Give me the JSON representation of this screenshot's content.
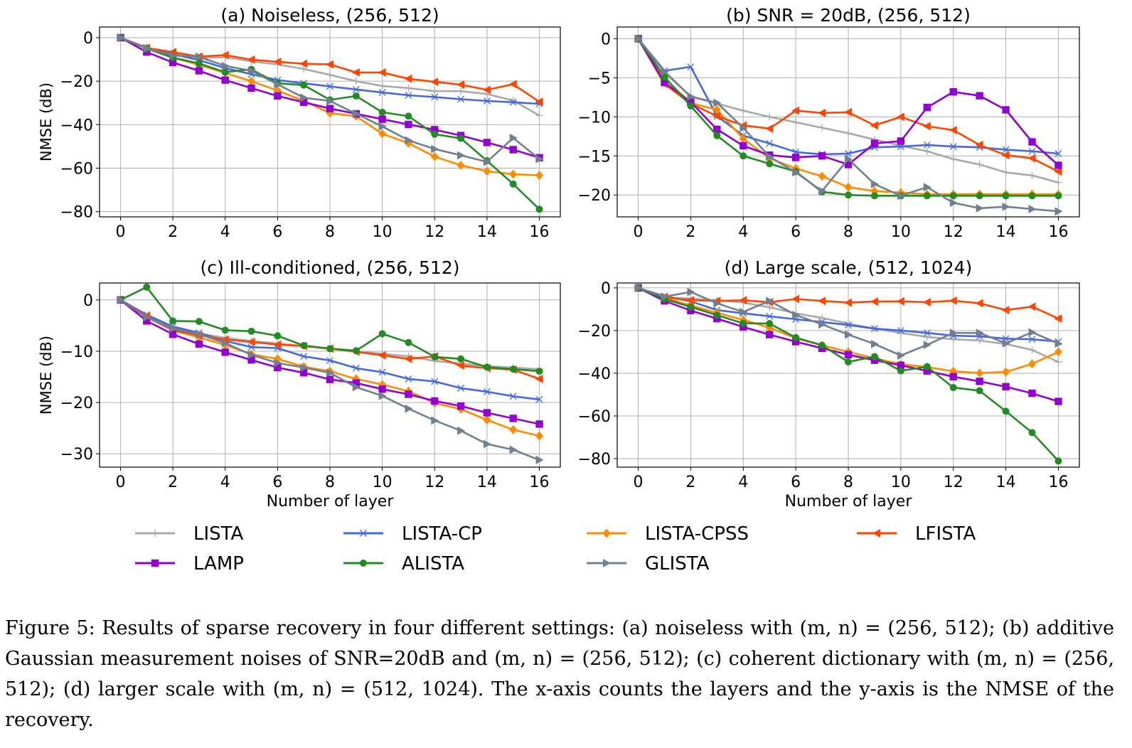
{
  "chart_data": [
    {
      "type": "line",
      "title": "(a) Noiseless, (256, 512)",
      "xlabel": "",
      "ylabel": "NMSE (dB)",
      "xlim": [
        -0.8,
        16.8
      ],
      "ylim": [
        -82.4,
        4.9
      ],
      "xticks": [
        0,
        2,
        4,
        6,
        8,
        10,
        12,
        14,
        16
      ],
      "yticks": [
        0,
        -20,
        -40,
        -60,
        -80
      ],
      "ytick_labels": [
        "0",
        "−20",
        "−40",
        "−60",
        "−80"
      ],
      "grid": true,
      "x": [
        0,
        1,
        2,
        3,
        4,
        5,
        6,
        7,
        8,
        9,
        10,
        11,
        12,
        13,
        14,
        15,
        16
      ],
      "series": [
        {
          "name": "LISTA",
          "values": [
            0,
            -4.6,
            -7.3,
            -9.3,
            -9.0,
            -10.9,
            -12.3,
            -14.4,
            -17.1,
            -20.0,
            -22.2,
            -23.2,
            -24.6,
            -24.6,
            -25.9,
            -28.9,
            -35.8
          ]
        },
        {
          "name": "LISTA-CP",
          "values": [
            0,
            -4.6,
            -7.6,
            -10.3,
            -14.0,
            -16.8,
            -19.5,
            -21.0,
            -22.4,
            -23.8,
            -25.2,
            -26.5,
            -27.3,
            -28.3,
            -29.1,
            -29.7,
            -30.4
          ]
        },
        {
          "name": "LISTA-CPSS",
          "values": [
            0,
            -4.9,
            -9.2,
            -12.5,
            -16.2,
            -20.0,
            -24.3,
            -29.1,
            -34.7,
            -36.1,
            -44.2,
            -48.5,
            -54.7,
            -58.7,
            -61.4,
            -62.8,
            -63.3
          ]
        },
        {
          "name": "LFISTA",
          "values": [
            0,
            -4.7,
            -6.6,
            -8.7,
            -8.0,
            -10.1,
            -11.1,
            -12.0,
            -12.3,
            -16.0,
            -16.0,
            -18.9,
            -20.3,
            -21.6,
            -24.0,
            -21.4,
            -29.5
          ]
        },
        {
          "name": "LAMP",
          "values": [
            0,
            -6.6,
            -11.4,
            -15.2,
            -19.5,
            -23.2,
            -26.8,
            -29.7,
            -32.6,
            -35.0,
            -37.5,
            -39.9,
            -42.3,
            -45.0,
            -48.2,
            -51.5,
            -55.2
          ]
        },
        {
          "name": "ALISTA",
          "values": [
            0,
            -5.0,
            -9.2,
            -11.8,
            -15.9,
            -14.6,
            -21.0,
            -21.8,
            -28.6,
            -26.8,
            -34.3,
            -36.1,
            -44.4,
            -46.3,
            -56.6,
            -67.3,
            -78.9
          ]
        },
        {
          "name": "GLISTA",
          "values": [
            0,
            -4.9,
            -8.2,
            -8.8,
            -13.0,
            -15.2,
            -21.5,
            -27.6,
            -29.1,
            -35.0,
            -40.8,
            -47.2,
            -51.2,
            -54.1,
            -57.1,
            -46.1,
            -55.8
          ]
        }
      ]
    },
    {
      "type": "line",
      "title": "(b) SNR = 20dB, (256, 512)",
      "xlabel": "",
      "ylabel": "",
      "xlim": [
        -0.8,
        16.8
      ],
      "ylim": [
        -22.8,
        1.5
      ],
      "xticks": [
        0,
        2,
        4,
        6,
        8,
        10,
        12,
        14,
        16
      ],
      "yticks": [
        0,
        -5,
        -10,
        -15,
        -20
      ],
      "ytick_labels": [
        "0",
        "−5",
        "−10",
        "−15",
        "−20"
      ],
      "grid": true,
      "x": [
        0,
        1,
        2,
        3,
        4,
        5,
        6,
        7,
        8,
        9,
        10,
        11,
        12,
        13,
        14,
        15,
        16
      ],
      "series": [
        {
          "name": "LISTA",
          "values": [
            0,
            -4.3,
            -7.4,
            -8.3,
            -9.2,
            -10.0,
            -10.7,
            -11.4,
            -12.1,
            -12.9,
            -13.7,
            -14.4,
            -15.4,
            -16.1,
            -17.1,
            -17.5,
            -18.4
          ]
        },
        {
          "name": "LISTA-CP",
          "values": [
            0,
            -4.1,
            -3.6,
            -9.9,
            -12.4,
            -13.4,
            -14.5,
            -14.8,
            -14.7,
            -13.9,
            -13.8,
            -13.6,
            -13.8,
            -13.9,
            -14.2,
            -14.4,
            -14.7
          ]
        },
        {
          "name": "LISTA-CPSS",
          "values": [
            0,
            -5.1,
            -8.2,
            -9.1,
            -12.8,
            -15.3,
            -16.6,
            -17.6,
            -19.0,
            -19.5,
            -19.7,
            -19.9,
            -19.9,
            -19.9,
            -19.9,
            -19.9,
            -19.9
          ]
        },
        {
          "name": "LFISTA",
          "values": [
            0,
            -5.8,
            -8.3,
            -9.9,
            -11.1,
            -11.5,
            -9.2,
            -9.5,
            -9.4,
            -11.1,
            -10.0,
            -11.2,
            -11.7,
            -13.6,
            -14.9,
            -15.3,
            -17.0
          ]
        },
        {
          "name": "LAMP",
          "values": [
            0,
            -5.6,
            -8.1,
            -11.6,
            -13.7,
            -14.9,
            -15.2,
            -15.0,
            -16.1,
            -13.4,
            -13.1,
            -8.8,
            -6.8,
            -7.3,
            -9.1,
            -13.2,
            -16.2
          ]
        },
        {
          "name": "ALISTA",
          "values": [
            0,
            -4.9,
            -8.6,
            -12.4,
            -15.0,
            -16.0,
            -17.0,
            -19.6,
            -20.0,
            -20.1,
            -20.1,
            -20.1,
            -20.1,
            -20.1,
            -20.1,
            -20.1,
            -20.1
          ]
        },
        {
          "name": "GLISTA",
          "values": [
            0,
            -4.2,
            -7.4,
            -8.2,
            -11.4,
            -15.1,
            -17.1,
            -19.5,
            -15.4,
            -18.6,
            -20.1,
            -19.0,
            -21.0,
            -21.7,
            -21.5,
            -21.8,
            -22.1
          ]
        }
      ]
    },
    {
      "type": "line",
      "title": "(c) Ill-conditioned, (256, 512)",
      "xlabel": "Number of layer",
      "ylabel": "NMSE (dB)",
      "xlim": [
        -0.8,
        16.8
      ],
      "ylim": [
        -32.6,
        3.3
      ],
      "xticks": [
        0,
        2,
        4,
        6,
        8,
        10,
        12,
        14,
        16
      ],
      "yticks": [
        0,
        -10,
        -20,
        -30
      ],
      "ytick_labels": [
        "0",
        "−10",
        "−20",
        "−30"
      ],
      "grid": true,
      "x": [
        0,
        1,
        2,
        3,
        4,
        5,
        6,
        7,
        8,
        9,
        10,
        11,
        12,
        13,
        14,
        15,
        16
      ],
      "series": [
        {
          "name": "LISTA",
          "values": [
            0,
            -3.0,
            -5.6,
            -6.6,
            -7.4,
            -8.0,
            -8.5,
            -9.0,
            -9.5,
            -10.0,
            -10.5,
            -11.0,
            -11.9,
            -12.4,
            -12.9,
            -13.2,
            -13.5
          ]
        },
        {
          "name": "LISTA-CP",
          "values": [
            0,
            -2.9,
            -5.2,
            -6.4,
            -8.0,
            -9.2,
            -9.4,
            -11.0,
            -11.8,
            -13.3,
            -14.1,
            -15.4,
            -15.9,
            -17.2,
            -17.9,
            -18.8,
            -19.4
          ]
        },
        {
          "name": "LISTA-CPSS",
          "values": [
            0,
            -3.4,
            -5.9,
            -7.3,
            -8.8,
            -10.6,
            -11.5,
            -13.0,
            -13.9,
            -15.4,
            -16.5,
            -17.8,
            -20.1,
            -21.3,
            -23.4,
            -25.3,
            -26.5
          ]
        },
        {
          "name": "LFISTA",
          "values": [
            0,
            -3.2,
            -5.9,
            -6.9,
            -7.7,
            -8.2,
            -8.7,
            -9.0,
            -9.5,
            -10.1,
            -10.8,
            -11.5,
            -11.0,
            -12.8,
            -13.3,
            -13.6,
            -15.4
          ]
        },
        {
          "name": "LAMP",
          "values": [
            0,
            -4.1,
            -6.7,
            -8.6,
            -10.2,
            -11.7,
            -13.2,
            -14.2,
            -15.5,
            -16.2,
            -17.4,
            -18.4,
            -19.7,
            -20.7,
            -22.0,
            -23.1,
            -24.2
          ]
        },
        {
          "name": "ALISTA",
          "values": [
            0,
            2.5,
            -4.1,
            -4.2,
            -5.9,
            -6.1,
            -7.0,
            -8.9,
            -9.5,
            -9.9,
            -6.6,
            -8.3,
            -11.1,
            -11.5,
            -13.1,
            -13.5,
            -13.9
          ]
        },
        {
          "name": "GLISTA",
          "values": [
            0,
            -3.4,
            -5.6,
            -6.7,
            -8.4,
            -10.7,
            -12.3,
            -13.2,
            -14.2,
            -17.0,
            -18.7,
            -21.2,
            -23.5,
            -25.5,
            -28.1,
            -29.2,
            -31.2
          ]
        }
      ]
    },
    {
      "type": "line",
      "title": "(d) Large scale, (512, 1024)",
      "xlabel": "Number of layer",
      "ylabel": "",
      "xlim": [
        -0.8,
        16.8
      ],
      "ylim": [
        -84.0,
        2.3
      ],
      "xticks": [
        0,
        2,
        4,
        6,
        8,
        10,
        12,
        14,
        16
      ],
      "yticks": [
        0,
        -20,
        -40,
        -60,
        -80
      ],
      "ytick_labels": [
        "0",
        "−20",
        "−40",
        "−60",
        "−80"
      ],
      "grid": true,
      "x": [
        0,
        1,
        2,
        3,
        4,
        5,
        6,
        7,
        8,
        9,
        10,
        11,
        12,
        13,
        14,
        15,
        16
      ],
      "series": [
        {
          "name": "LISTA",
          "values": [
            0,
            -4.4,
            -5.0,
            -5.8,
            -6.9,
            -9.1,
            -11.9,
            -14.1,
            -16.7,
            -19.1,
            -21.1,
            -23.0,
            -24.1,
            -24.7,
            -26.3,
            -29.1,
            -34.7
          ]
        },
        {
          "name": "LISTA-CP",
          "values": [
            0,
            -3.9,
            -6.3,
            -10.4,
            -11.9,
            -13.3,
            -14.7,
            -16.0,
            -17.4,
            -19.1,
            -20.0,
            -21.1,
            -22.4,
            -22.7,
            -23.8,
            -24.1,
            -25.2
          ]
        },
        {
          "name": "LISTA-CPSS",
          "values": [
            0,
            -4.7,
            -8.2,
            -11.7,
            -15.0,
            -18.6,
            -23.6,
            -26.9,
            -30.0,
            -33.0,
            -35.8,
            -37.1,
            -39.1,
            -39.9,
            -39.4,
            -35.6,
            -30.0
          ]
        },
        {
          "name": "LFISTA",
          "values": [
            0,
            -4.4,
            -5.8,
            -6.1,
            -5.8,
            -6.7,
            -5.2,
            -6.1,
            -6.9,
            -6.4,
            -6.3,
            -6.7,
            -6.0,
            -7.2,
            -10.4,
            -8.8,
            -14.4
          ]
        },
        {
          "name": "LAMP",
          "values": [
            0,
            -6.1,
            -10.6,
            -14.4,
            -18.3,
            -21.9,
            -25.2,
            -28.3,
            -31.3,
            -33.9,
            -36.3,
            -38.9,
            -41.6,
            -43.8,
            -46.3,
            -49.4,
            -53.2
          ]
        },
        {
          "name": "ALISTA",
          "values": [
            0,
            -5.2,
            -8.9,
            -12.8,
            -16.6,
            -16.7,
            -23.3,
            -26.9,
            -34.7,
            -32.2,
            -38.9,
            -36.9,
            -46.7,
            -48.2,
            -57.8,
            -67.8,
            -81.1
          ]
        },
        {
          "name": "GLISTA",
          "values": [
            0,
            -4.1,
            -1.9,
            -7.2,
            -11.3,
            -6.1,
            -12.7,
            -17.1,
            -21.9,
            -26.3,
            -31.7,
            -26.7,
            -21.1,
            -21.1,
            -26.0,
            -20.8,
            -26.1
          ]
        }
      ]
    }
  ],
  "legend": {
    "placement": "bottom",
    "entries": [
      {
        "name": "LISTA",
        "color": "#a9a9a9",
        "marker": "plus"
      },
      {
        "name": "LISTA-CP",
        "color": "#4169e1",
        "marker": "x"
      },
      {
        "name": "LISTA-CPSS",
        "color": "#ff8c00",
        "marker": "diamond"
      },
      {
        "name": "LFISTA",
        "color": "#ff4500",
        "marker": "triangle-left"
      },
      {
        "name": "LAMP",
        "color": "#9400d3",
        "marker": "square"
      },
      {
        "name": "ALISTA",
        "color": "#228b22",
        "marker": "circle"
      },
      {
        "name": "GLISTA",
        "color": "#708090",
        "marker": "triangle-right"
      }
    ]
  },
  "caption": {
    "text": "Figure 5: Results of sparse recovery in four different settings: (a) noiseless with (m, n) = (256, 512); (b) additive Gaussian measurement noises of SNR=20dB and (m, n) = (256, 512); (c) coherent dictionary with (m, n) = (256, 512); (d) larger scale with (m, n) = (512, 1024). The x-axis counts the layers and the y-axis is the NMSE of the recovery."
  }
}
